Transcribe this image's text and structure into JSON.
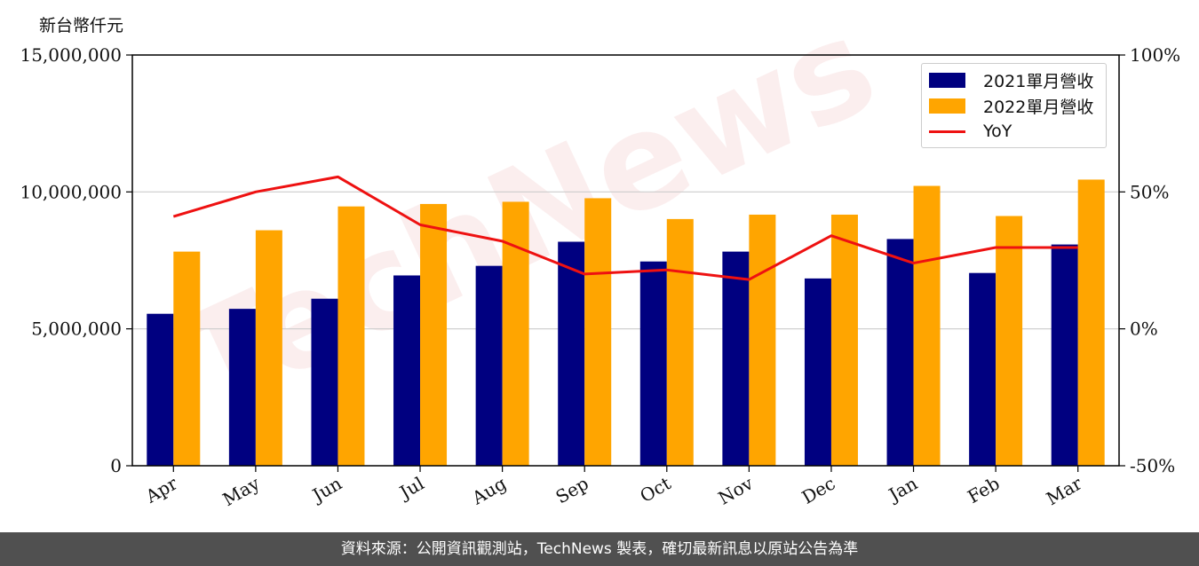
{
  "unit_label": "新台幣仟元",
  "footer_text": "資料來源：公開資訊觀測站，TechNews 製表，確切最新訊息以原站公告為準",
  "watermark_text": "TechNews",
  "colors": {
    "series_2021": "#000080",
    "series_2022": "#FFA500",
    "yoy": "#EE1111",
    "grid": "#cccccc",
    "footer_bg": "#505050"
  },
  "chart_data": {
    "type": "bar",
    "categories": [
      "Apr",
      "May",
      "Jun",
      "Jul",
      "Aug",
      "Sep",
      "Oct",
      "Nov",
      "Dec",
      "Jan",
      "Feb",
      "Mar"
    ],
    "series": [
      {
        "name": "2021單月營收",
        "axis": "left",
        "type": "bar",
        "values": [
          5550000,
          5730000,
          6100000,
          6950000,
          7300000,
          8180000,
          7460000,
          7820000,
          6840000,
          8280000,
          7040000,
          8080000
        ]
      },
      {
        "name": "2022單月營收",
        "axis": "left",
        "type": "bar",
        "values": [
          7820000,
          8600000,
          9470000,
          9560000,
          9640000,
          9770000,
          9010000,
          9170000,
          9170000,
          10220000,
          9120000,
          10450000
        ]
      },
      {
        "name": "YoY",
        "axis": "right",
        "type": "line",
        "values": [
          41,
          50,
          55.5,
          38,
          32,
          20,
          21.5,
          18,
          34,
          24,
          29.7,
          29.7
        ]
      }
    ],
    "left_axis": {
      "ylim": [
        0,
        15000000
      ],
      "ticks": [
        0,
        5000000,
        10000000,
        15000000
      ],
      "tick_labels": [
        "0",
        "5,000,000",
        "10,000,000",
        "15,000,000"
      ]
    },
    "right_axis": {
      "ylim": [
        -50,
        100
      ],
      "ticks": [
        -50,
        0,
        50,
        100
      ],
      "tick_labels": [
        "-50%",
        "0%",
        "50%",
        "100%"
      ]
    },
    "grid": true,
    "legend_position": "top-right"
  }
}
